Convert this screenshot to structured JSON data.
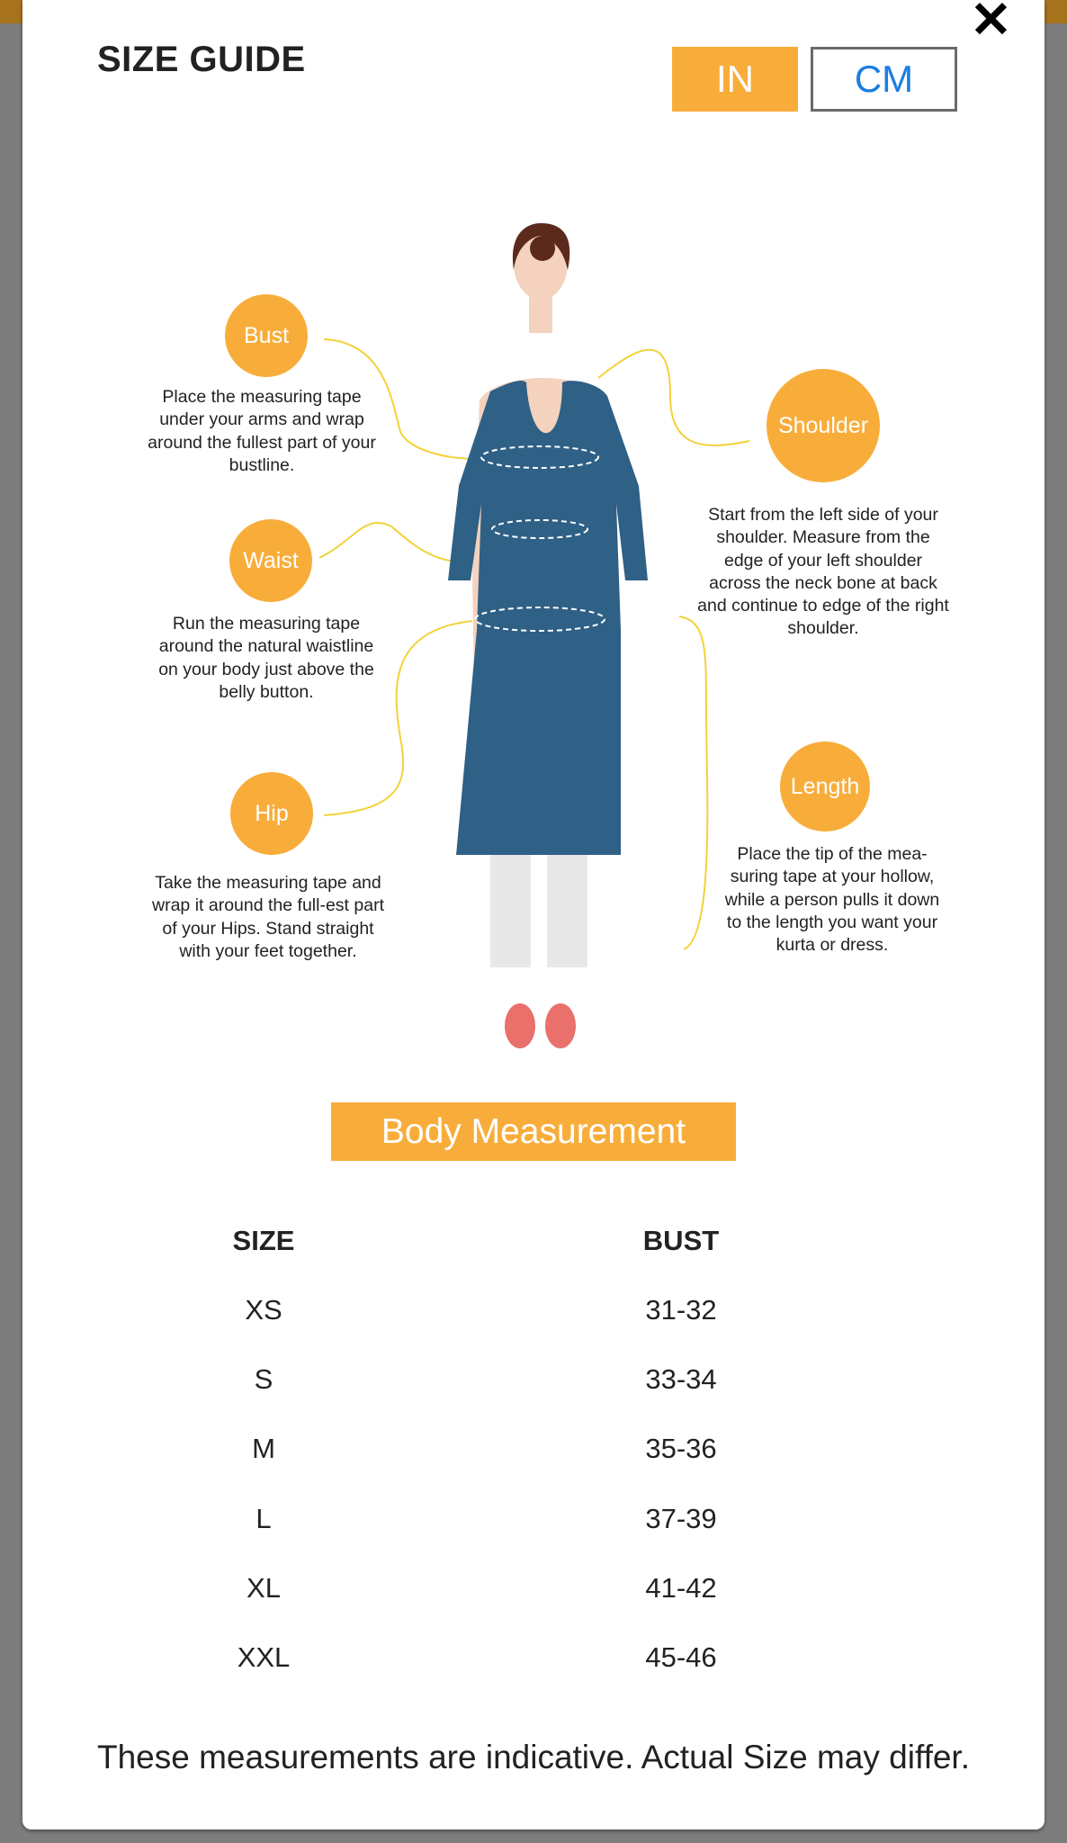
{
  "header": {
    "title": "SIZE GUIDE",
    "close_icon": "close-icon",
    "units": [
      {
        "label": "IN",
        "active": true
      },
      {
        "label": "CM",
        "active": false
      }
    ]
  },
  "colors": {
    "accent": "#f8ad3b",
    "cm_text": "#1a7ee0"
  },
  "guide": {
    "bust": {
      "label": "Bust",
      "text": "Place the measuring tape under your arms and wrap around the fullest part of your bustline."
    },
    "waist": {
      "label": "Waist",
      "text": "Run the measuring tape around the natural waistline on your body just above the belly button."
    },
    "hip": {
      "label": "Hip",
      "text": "Take the measuring tape and wrap it around the full-est part of your Hips. Stand straight with your feet together."
    },
    "shoulder": {
      "label": "Shoulder",
      "text": "Start from the left side of your shoulder. Measure from the edge of your left shoulder across the neck bone at back and continue to edge of the right shoulder."
    },
    "length": {
      "label": "Length",
      "text": "Place the tip of the mea-suring tape at your hollow, while a person pulls it down to the length you want your kurta or dress."
    }
  },
  "table": {
    "title": "Body Measurement",
    "headers": [
      "SIZE",
      "BUST"
    ],
    "rows": [
      [
        "XS",
        "31-32"
      ],
      [
        "S",
        "33-34"
      ],
      [
        "M",
        "35-36"
      ],
      [
        "L",
        "37-39"
      ],
      [
        "XL",
        "41-42"
      ],
      [
        "XXL",
        "45-46"
      ]
    ]
  },
  "footer": "These measurements are indicative. Actual Size may differ."
}
